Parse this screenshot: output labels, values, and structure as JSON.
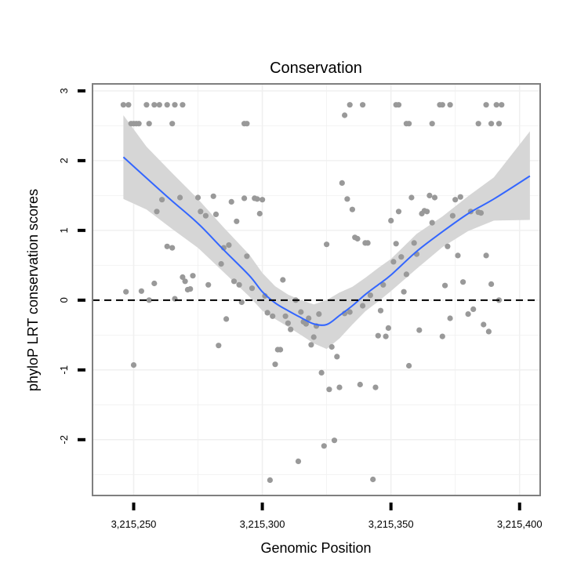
{
  "chart_data": {
    "type": "scatter",
    "title": "Conservation",
    "xlabel": "Genomic Position",
    "ylabel": "phyloP LRT conservation scores",
    "xlim": [
      3215234,
      3215408
    ],
    "ylim": [
      -2.8,
      3.1
    ],
    "x_ticks": [
      {
        "value": 3215250,
        "label": "3,215,250"
      },
      {
        "value": 3215300,
        "label": "3,215,300"
      },
      {
        "value": 3215350,
        "label": "3,215,350"
      },
      {
        "value": 3215400,
        "label": "3,215,400"
      }
    ],
    "y_ticks": [
      {
        "value": -2,
        "label": "-2"
      },
      {
        "value": -1,
        "label": "-1"
      },
      {
        "value": 0,
        "label": "0"
      },
      {
        "value": 1,
        "label": "1"
      },
      {
        "value": 2,
        "label": "2"
      },
      {
        "value": 3,
        "label": "3"
      }
    ],
    "grid": true,
    "reference_line": {
      "y": 0,
      "style": "dashed"
    },
    "colors": {
      "points": "#999999",
      "smooth_line": "#3366ff",
      "confidence_band": "#d6d6d6",
      "grid": "#f0f0f0",
      "panel_border": "#7f7f7f"
    },
    "points": [
      [
        3215246,
        2.8
      ],
      [
        3215248,
        2.8
      ],
      [
        3215249,
        2.53
      ],
      [
        3215250,
        2.53
      ],
      [
        3215251,
        2.53
      ],
      [
        3215252,
        2.53
      ],
      [
        3215255,
        2.8
      ],
      [
        3215256,
        2.53
      ],
      [
        3215258,
        2.8
      ],
      [
        3215260,
        2.8
      ],
      [
        3215263,
        2.8
      ],
      [
        3215265,
        2.53
      ],
      [
        3215266,
        2.8
      ],
      [
        3215269,
        2.8
      ],
      [
        3215293,
        2.53
      ],
      [
        3215294,
        2.53
      ],
      [
        3215332,
        2.65
      ],
      [
        3215334,
        2.8
      ],
      [
        3215339,
        2.8
      ],
      [
        3215352,
        2.8
      ],
      [
        3215353,
        2.8
      ],
      [
        3215356,
        2.53
      ],
      [
        3215357,
        2.53
      ],
      [
        3215366,
        2.53
      ],
      [
        3215369,
        2.8
      ],
      [
        3215370,
        2.8
      ],
      [
        3215373,
        2.8
      ],
      [
        3215384,
        2.53
      ],
      [
        3215387,
        2.8
      ],
      [
        3215389,
        2.53
      ],
      [
        3215391,
        2.8
      ],
      [
        3215392,
        2.53
      ],
      [
        3215393,
        2.8
      ],
      [
        3215247,
        0.12
      ],
      [
        3215250,
        -0.93
      ],
      [
        3215253,
        0.13
      ],
      [
        3215256,
        0
      ],
      [
        3215258,
        0.24
      ],
      [
        3215259,
        1.27
      ],
      [
        3215261,
        1.44
      ],
      [
        3215263,
        0.77
      ],
      [
        3215265,
        0.75
      ],
      [
        3215266,
        0.02
      ],
      [
        3215268,
        1.47
      ],
      [
        3215269,
        0.33
      ],
      [
        3215270,
        0.27
      ],
      [
        3215271,
        0.15
      ],
      [
        3215272,
        0.16
      ],
      [
        3215273,
        0.35
      ],
      [
        3215275,
        1.47
      ],
      [
        3215276,
        1.27
      ],
      [
        3215278,
        1.21
      ],
      [
        3215279,
        0.22
      ],
      [
        3215281,
        1.49
      ],
      [
        3215282,
        1.23
      ],
      [
        3215283,
        -0.65
      ],
      [
        3215284,
        0.52
      ],
      [
        3215285,
        0.75
      ],
      [
        3215286,
        -0.27
      ],
      [
        3215287,
        0.79
      ],
      [
        3215288,
        1.41
      ],
      [
        3215289,
        0.27
      ],
      [
        3215290,
        1.13
      ],
      [
        3215291,
        0.22
      ],
      [
        3215292,
        -0.03
      ],
      [
        3215293,
        1.46
      ],
      [
        3215294,
        0.63
      ],
      [
        3215296,
        0.17
      ],
      [
        3215297,
        1.46
      ],
      [
        3215298,
        1.45
      ],
      [
        3215299,
        1.24
      ],
      [
        3215300,
        1.44
      ],
      [
        3215301,
        0.06
      ],
      [
        3215302,
        -0.18
      ],
      [
        3215303,
        -2.58
      ],
      [
        3215304,
        -0.23
      ],
      [
        3215305,
        -0.92
      ],
      [
        3215306,
        -0.71
      ],
      [
        3215307,
        -0.71
      ],
      [
        3215308,
        0.29
      ],
      [
        3215309,
        -0.23
      ],
      [
        3215310,
        -0.33
      ],
      [
        3215311,
        -0.42
      ],
      [
        3215313,
        0
      ],
      [
        3215314,
        -2.31
      ],
      [
        3215315,
        -0.17
      ],
      [
        3215316,
        -0.31
      ],
      [
        3215317,
        -0.34
      ],
      [
        3215318,
        -0.26
      ],
      [
        3215319,
        -0.64
      ],
      [
        3215320,
        -0.53
      ],
      [
        3215321,
        -0.37
      ],
      [
        3215322,
        -0.2
      ],
      [
        3215323,
        -1.04
      ],
      [
        3215324,
        -2.09
      ],
      [
        3215325,
        0.8
      ],
      [
        3215326,
        -1.28
      ],
      [
        3215327,
        -0.67
      ],
      [
        3215328,
        -2.01
      ],
      [
        3215329,
        -0.81
      ],
      [
        3215330,
        -1.25
      ],
      [
        3215331,
        1.68
      ],
      [
        3215332,
        -0.19
      ],
      [
        3215333,
        1.45
      ],
      [
        3215334,
        -0.17
      ],
      [
        3215335,
        1.3
      ],
      [
        3215336,
        0.9
      ],
      [
        3215337,
        0.88
      ],
      [
        3215338,
        -1.21
      ],
      [
        3215339,
        -0.08
      ],
      [
        3215340,
        0.82
      ],
      [
        3215341,
        0.82
      ],
      [
        3215342,
        0.07
      ],
      [
        3215343,
        -2.57
      ],
      [
        3215344,
        -1.25
      ],
      [
        3215345,
        -0.51
      ],
      [
        3215346,
        -0.15
      ],
      [
        3215347,
        0.22
      ],
      [
        3215348,
        -0.52
      ],
      [
        3215349,
        -0.4
      ],
      [
        3215350,
        1.14
      ],
      [
        3215351,
        0.55
      ],
      [
        3215352,
        0.81
      ],
      [
        3215353,
        1.27
      ],
      [
        3215354,
        0.62
      ],
      [
        3215355,
        0.12
      ],
      [
        3215356,
        0.37
      ],
      [
        3215357,
        -0.94
      ],
      [
        3215358,
        1.47
      ],
      [
        3215359,
        0.82
      ],
      [
        3215360,
        0.66
      ],
      [
        3215361,
        -0.43
      ],
      [
        3215362,
        1.24
      ],
      [
        3215363,
        1.28
      ],
      [
        3215364,
        1.27
      ],
      [
        3215365,
        1.5
      ],
      [
        3215366,
        1.11
      ],
      [
        3215367,
        1.47
      ],
      [
        3215370,
        -0.52
      ],
      [
        3215371,
        0.21
      ],
      [
        3215372,
        0.77
      ],
      [
        3215373,
        -0.26
      ],
      [
        3215374,
        1.21
      ],
      [
        3215375,
        1.44
      ],
      [
        3215376,
        0.64
      ],
      [
        3215377,
        1.48
      ],
      [
        3215378,
        0.26
      ],
      [
        3215380,
        -0.2
      ],
      [
        3215381,
        1.27
      ],
      [
        3215382,
        -0.13
      ],
      [
        3215384,
        1.26
      ],
      [
        3215385,
        1.25
      ],
      [
        3215386,
        -0.35
      ],
      [
        3215387,
        0.64
      ],
      [
        3215388,
        -0.45
      ],
      [
        3215389,
        0.23
      ],
      [
        3215392,
        0
      ]
    ],
    "smooth": {
      "x": [
        3215246,
        3215255,
        3215265,
        3215275,
        3215285,
        3215295,
        3215300,
        3215305,
        3215310,
        3215315,
        3215320,
        3215325,
        3215330,
        3215335,
        3215340,
        3215345,
        3215350,
        3215360,
        3215370,
        3215380,
        3215390,
        3215404
      ],
      "y": [
        2.05,
        1.75,
        1.42,
        1.1,
        0.72,
        0.35,
        0.12,
        -0.04,
        -0.15,
        -0.25,
        -0.34,
        -0.35,
        -0.22,
        -0.08,
        0.08,
        0.22,
        0.36,
        0.7,
        0.98,
        1.24,
        1.45,
        1.78
      ],
      "lower": [
        1.45,
        1.3,
        1.02,
        0.75,
        0.4,
        0.05,
        -0.15,
        -0.27,
        -0.38,
        -0.5,
        -0.62,
        -0.7,
        -0.55,
        -0.35,
        -0.16,
        -0.02,
        0.13,
        0.45,
        0.76,
        0.99,
        1.14,
        1.15
      ],
      "upper": [
        2.65,
        2.2,
        1.82,
        1.45,
        1.04,
        0.65,
        0.39,
        0.2,
        0.08,
        0,
        -0.06,
        0,
        0.11,
        0.19,
        0.32,
        0.46,
        0.59,
        0.95,
        1.2,
        1.49,
        1.76,
        2.42
      ]
    }
  }
}
